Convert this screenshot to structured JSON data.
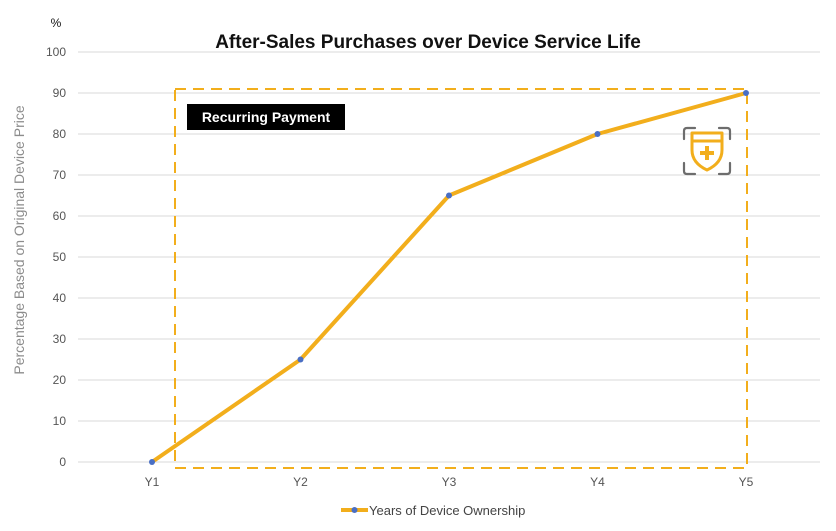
{
  "chart_data": {
    "type": "line",
    "title": "After-Sales Purchases over Device Service Life",
    "unit_label": "%",
    "ylabel": "Percentage Based on Original Device Price",
    "xlabel": "",
    "categories": [
      "Y1",
      "Y2",
      "Y3",
      "Y4",
      "Y5"
    ],
    "series": [
      {
        "name": "Years of Device Ownership",
        "values": [
          0,
          25,
          65,
          80,
          90
        ]
      }
    ],
    "ylim": [
      0,
      100
    ],
    "yticks": [
      0,
      10,
      20,
      30,
      40,
      50,
      60,
      70,
      80,
      90,
      100
    ],
    "grid": true,
    "legend_position": "bottom",
    "annotation": {
      "label": "Recurring Payment",
      "from_category": "Y1",
      "to_category": "Y5"
    },
    "icon": "shield-plus-icon",
    "colors": {
      "line": "#f2ae1c",
      "marker": "#4a6fc4",
      "grid": "#d9d9d9",
      "badge_bg": "#000000",
      "dashed_box": "#f2ae1c",
      "icon_frame": "#6d6d6d"
    }
  }
}
